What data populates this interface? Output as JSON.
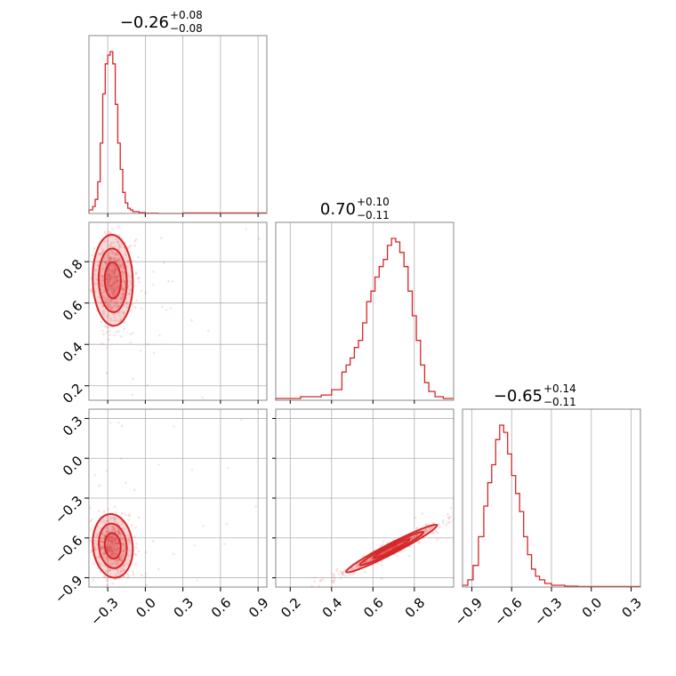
{
  "chart_data": {
    "type": "corner",
    "color": "#d62728",
    "grid": true,
    "titles": [
      {
        "value": "−0.26",
        "plus": "+0.08",
        "minus": "−0.08"
      },
      {
        "value": "0.70",
        "plus": "+0.10",
        "minus": "−0.11"
      },
      {
        "value": "−0.65",
        "plus": "+0.14",
        "minus": "−0.11"
      }
    ],
    "params": [
      {
        "range": [
          -0.45,
          0.97
        ],
        "ticks": [
          -0.3,
          0.0,
          0.3,
          0.6,
          0.9
        ],
        "tick_labels": [
          "−0.3",
          "0.0",
          "0.3",
          "0.6",
          "0.9"
        ]
      },
      {
        "range": [
          0.13,
          0.99
        ],
        "ticks": [
          0.2,
          0.4,
          0.6,
          0.8
        ],
        "tick_labels": [
          "0.2",
          "0.4",
          "0.6",
          "0.8"
        ]
      },
      {
        "range": [
          -0.97,
          0.37
        ],
        "ticks": [
          -0.9,
          -0.6,
          -0.3,
          0.0,
          0.3
        ],
        "tick_labels": [
          "−0.9",
          "−0.6",
          "−0.3",
          "0.0",
          "0.3"
        ]
      }
    ],
    "histograms": [
      {
        "param": 0,
        "bins": [
          -0.45,
          -0.42,
          -0.4,
          -0.38,
          -0.36,
          -0.34,
          -0.32,
          -0.3,
          -0.28,
          -0.26,
          -0.24,
          -0.22,
          -0.2,
          -0.18,
          -0.16,
          -0.14,
          -0.12,
          -0.1,
          -0.05,
          0.0,
          0.1,
          0.3,
          0.5,
          0.7,
          0.97
        ],
        "counts": [
          2,
          4,
          8,
          18,
          40,
          68,
          85,
          90,
          92,
          85,
          62,
          40,
          25,
          12,
          6,
          3,
          2,
          1,
          0.5,
          0.2,
          0,
          0.3,
          0.3,
          0.3
        ]
      },
      {
        "param": 1,
        "bins": [
          0.13,
          0.2,
          0.25,
          0.3,
          0.35,
          0.4,
          0.45,
          0.47,
          0.49,
          0.51,
          0.53,
          0.55,
          0.57,
          0.59,
          0.61,
          0.63,
          0.65,
          0.67,
          0.69,
          0.71,
          0.73,
          0.75,
          0.77,
          0.79,
          0.81,
          0.83,
          0.85,
          0.87,
          0.9,
          0.94,
          0.99
        ],
        "counts": [
          1,
          1,
          2,
          2,
          3,
          6,
          16,
          20,
          24,
          30,
          34,
          44,
          56,
          62,
          70,
          76,
          80,
          88,
          92,
          90,
          84,
          76,
          62,
          48,
          34,
          20,
          10,
          5,
          2,
          1
        ]
      },
      {
        "param": 2,
        "bins": [
          -0.97,
          -0.93,
          -0.89,
          -0.85,
          -0.81,
          -0.78,
          -0.75,
          -0.72,
          -0.69,
          -0.66,
          -0.63,
          -0.6,
          -0.57,
          -0.54,
          -0.51,
          -0.48,
          -0.45,
          -0.42,
          -0.39,
          -0.35,
          -0.3,
          -0.2,
          -0.1,
          0.37
        ],
        "counts": [
          1,
          4,
          12,
          28,
          45,
          58,
          68,
          82,
          90,
          86,
          74,
          62,
          52,
          42,
          28,
          18,
          10,
          6,
          4,
          2,
          1,
          0.5,
          0.3
        ]
      }
    ],
    "pairs": [
      {
        "x": 0,
        "y": 1,
        "center": [
          -0.26,
          0.71
        ],
        "spread": [
          0.08,
          0.11
        ],
        "corr": -0.05
      },
      {
        "x": 0,
        "y": 2,
        "center": [
          -0.26,
          -0.66
        ],
        "spread": [
          0.08,
          0.12
        ],
        "corr": -0.1
      },
      {
        "x": 1,
        "y": 2,
        "center": [
          0.69,
          -0.68
        ],
        "spread": [
          0.11,
          0.09
        ],
        "corr": 0.97
      }
    ]
  }
}
